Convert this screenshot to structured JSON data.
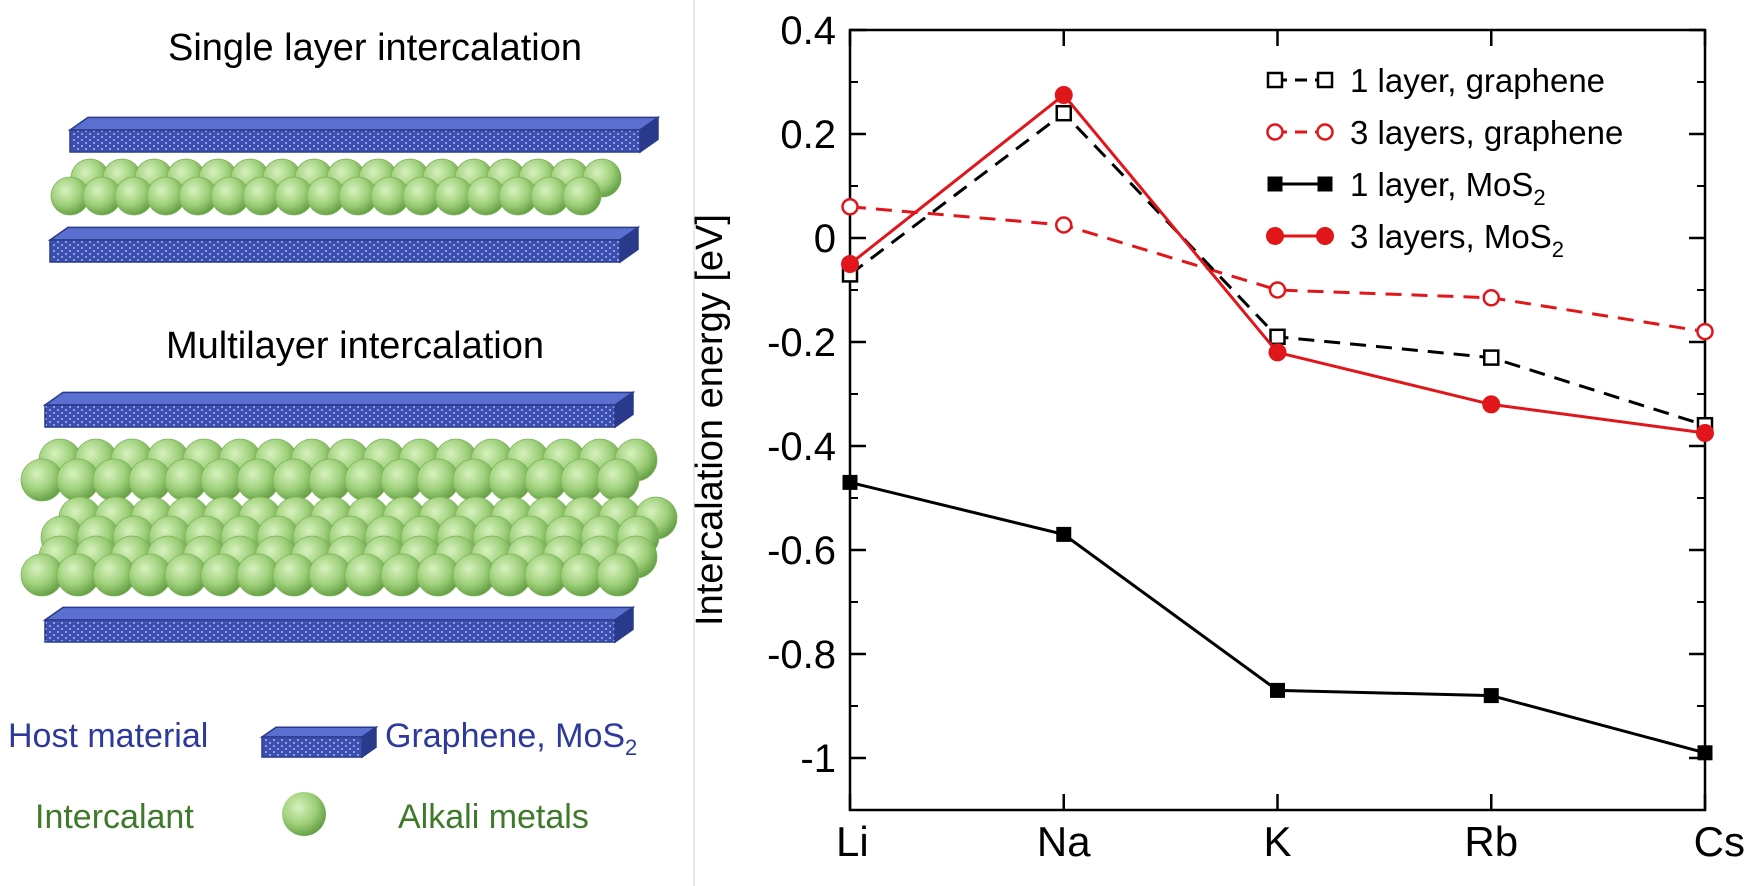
{
  "schematic": {
    "single_title": "Single layer intercalation",
    "multi_title": "Multilayer intercalation",
    "host_label": "Host material",
    "host_examples": "Graphene, MoS",
    "host_examples_sub": "2",
    "intercalant_label": "Intercalant",
    "intercalant_examples": "Alkali metals",
    "colors": {
      "slab": "#3a4fb0",
      "slab_dark": "#2a3a8a",
      "sphere": "#9ed07a",
      "sphere_dark": "#6fa84d",
      "host_text": "#2d3a9c",
      "intercalant_text": "#3e7a2a"
    }
  },
  "chart_data": {
    "type": "line",
    "categories": [
      "Li",
      "Na",
      "K",
      "Rb",
      "Cs"
    ],
    "ylabel": "Intercalation energy [eV]",
    "xlabel": "",
    "ylim": [
      -1.1,
      0.4
    ],
    "yticks": [
      0.4,
      0.2,
      0,
      -0.2,
      -0.4,
      -0.6,
      -0.8,
      -1
    ],
    "ytick_labels": [
      "0.4",
      "0.2",
      "0",
      "-0.2",
      "-0.4",
      "-0.6",
      "-0.8",
      "-1"
    ],
    "legend_position": "top-right",
    "series": [
      {
        "name": "1 layer, graphene",
        "sub": "",
        "values": [
          -0.07,
          0.24,
          -0.19,
          -0.23,
          -0.36
        ],
        "color": "#000000",
        "dashed": true,
        "marker": "square-open"
      },
      {
        "name": "3 layers, graphene",
        "sub": "",
        "values": [
          0.06,
          0.025,
          -0.1,
          -0.115,
          -0.18
        ],
        "color": "#e0161b",
        "dashed": true,
        "marker": "circle-open"
      },
      {
        "name": "1 layer, MoS",
        "sub": "2",
        "values": [
          -0.47,
          -0.57,
          -0.87,
          -0.88,
          -0.99
        ],
        "color": "#000000",
        "dashed": false,
        "marker": "square-filled"
      },
      {
        "name": "3 layers, MoS",
        "sub": "2",
        "values": [
          -0.05,
          0.275,
          -0.22,
          -0.32,
          -0.375
        ],
        "color": "#e0161b",
        "dashed": false,
        "marker": "circle-filled"
      }
    ]
  }
}
